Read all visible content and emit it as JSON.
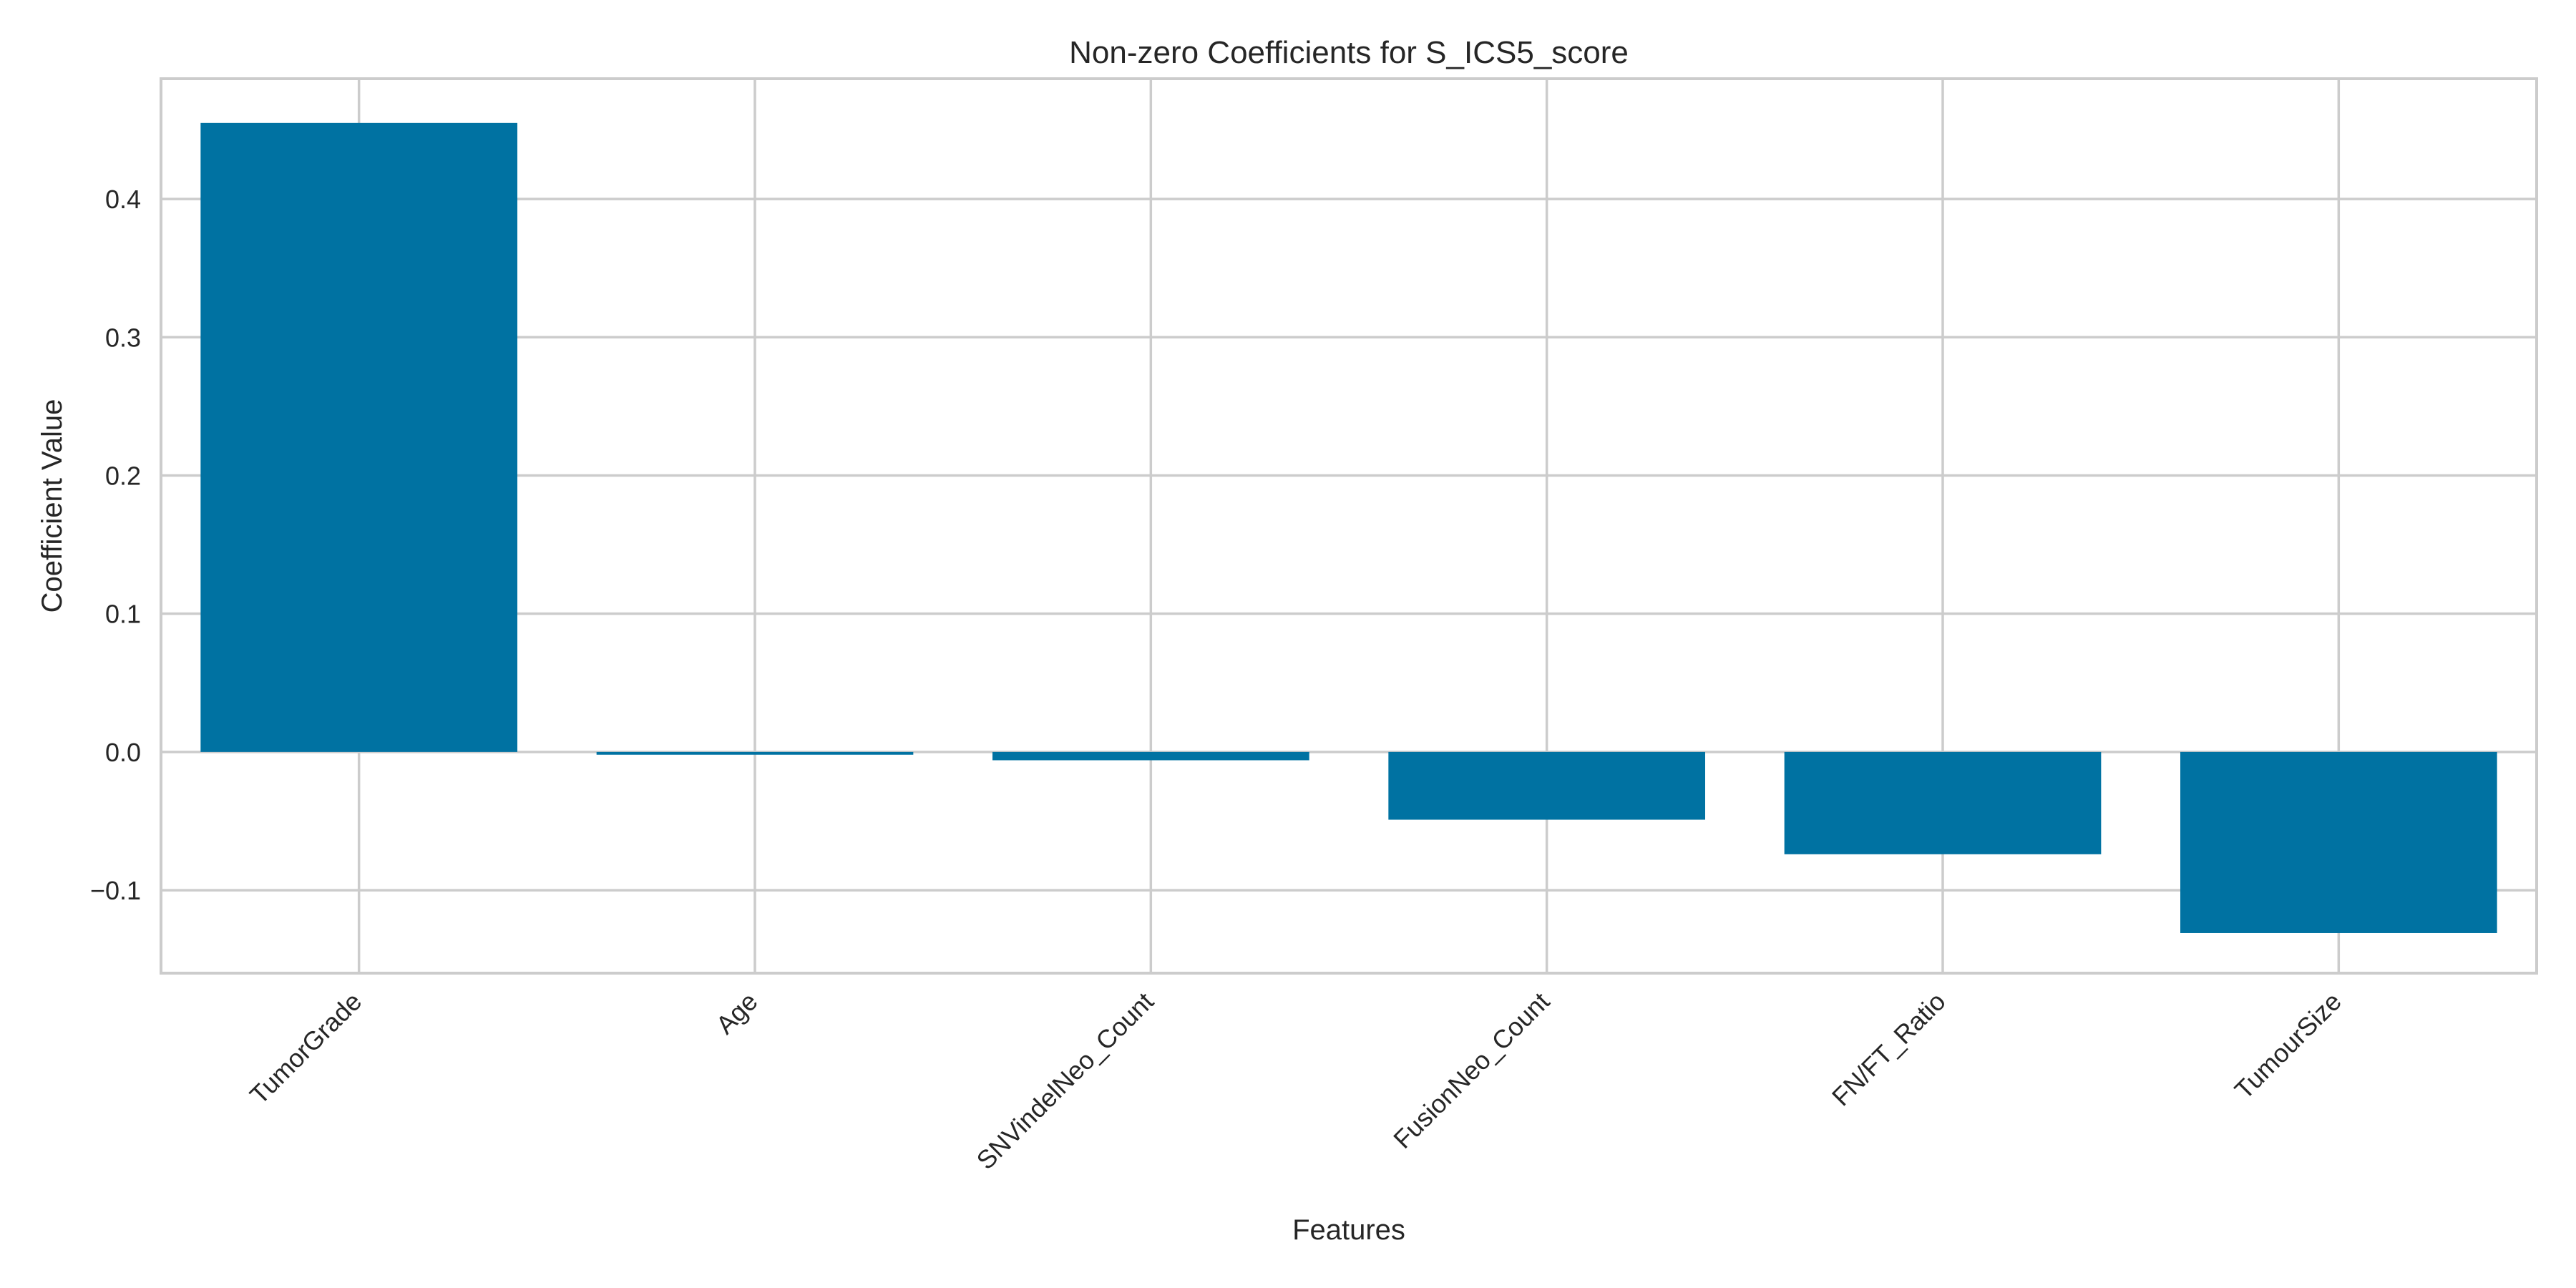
{
  "chart_data": {
    "type": "bar",
    "title": "Non-zero Coefficients for S_ICS5_score",
    "xlabel": "Features",
    "ylabel": "Coefficient Value",
    "categories": [
      "TumorGrade",
      "Age",
      "SNVindelNeo_Count",
      "FusionNeo_Count",
      "FN/FT_Ratio",
      "TumourSize"
    ],
    "values": [
      0.455,
      -0.002,
      -0.006,
      -0.049,
      -0.074,
      -0.131
    ],
    "ylim": [
      -0.16,
      0.487
    ],
    "yticks": [
      -0.1,
      0.0,
      0.1,
      0.2,
      0.3,
      0.4
    ],
    "ytick_labels": [
      "−0.1",
      "0.0",
      "0.1",
      "0.2",
      "0.3",
      "0.4"
    ],
    "grid": true,
    "colors": {
      "bar": "#0072a2",
      "grid": "#cccccc",
      "spine": "#cccccc",
      "text": "#262626"
    }
  }
}
